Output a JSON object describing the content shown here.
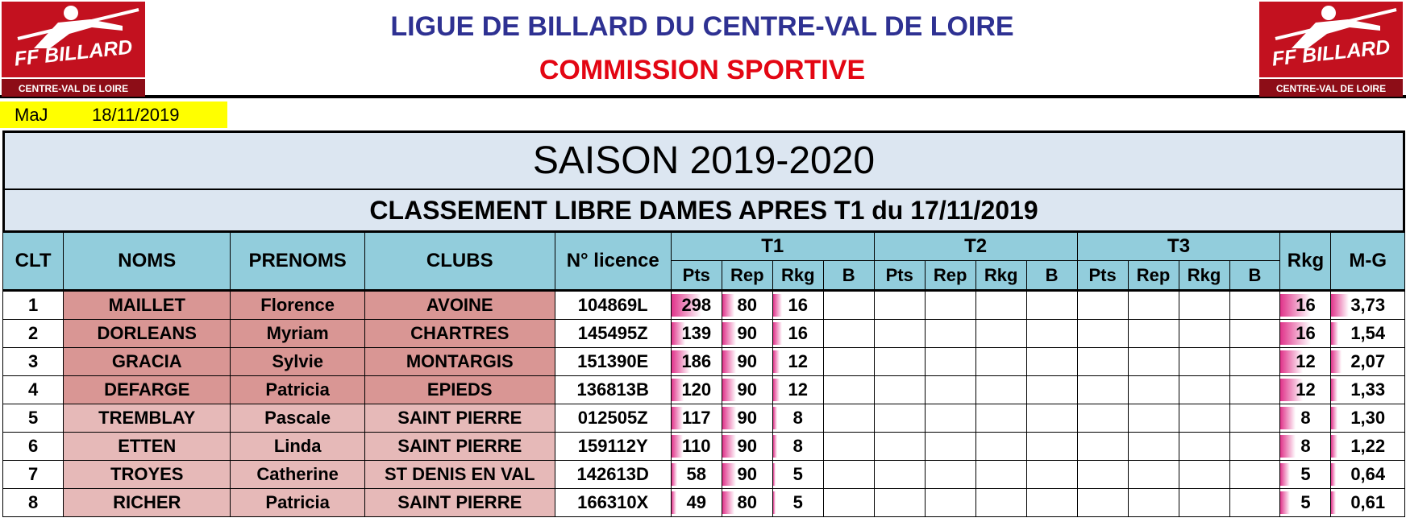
{
  "header": {
    "title": "LIGUE DE BILLARD DU CENTRE-VAL DE LOIRE",
    "subtitle": "COMMISSION SPORTIVE",
    "logo_text": "FF BILLARD",
    "logo_sub": "CENTRE-VAL DE LOIRE",
    "colors": {
      "title": "#2e3192",
      "subtitle": "#e30613",
      "logo": "#c3111f"
    }
  },
  "maj": {
    "label": "MaJ",
    "date": "18/11/2019"
  },
  "season": "SAISON 2019-2020",
  "classement": "CLASSEMENT LIBRE DAMES APRES T1 du 17/11/2019",
  "columns": {
    "clt": "CLT",
    "noms": "NOMS",
    "prenoms": "PRENOMS",
    "clubs": "CLUBS",
    "licence": "N° licence",
    "t1": "T1",
    "t2": "T2",
    "t3": "T3",
    "rkg": "Rkg",
    "mg": "M-G",
    "sub": {
      "pts": "Pts",
      "rep": "Rep",
      "rkg": "Rkg",
      "b": "B"
    }
  },
  "rows": [
    {
      "clt": "1",
      "nom": "MAILLET",
      "prenom": "Florence",
      "club": "AVOINE",
      "licence": "104869L",
      "pts": "298",
      "rep": "80",
      "rkg": "16",
      "total_rkg": "16",
      "mg": "3,73",
      "tier": 1
    },
    {
      "clt": "2",
      "nom": "DORLEANS",
      "prenom": "Myriam",
      "club": "CHARTRES",
      "licence": "145495Z",
      "pts": "139",
      "rep": "90",
      "rkg": "16",
      "total_rkg": "16",
      "mg": "1,54",
      "tier": 1
    },
    {
      "clt": "3",
      "nom": "GRACIA",
      "prenom": "Sylvie",
      "club": "MONTARGIS",
      "licence": "151390E",
      "pts": "186",
      "rep": "90",
      "rkg": "12",
      "total_rkg": "12",
      "mg": "2,07",
      "tier": 1
    },
    {
      "clt": "4",
      "nom": "DEFARGE",
      "prenom": "Patricia",
      "club": "EPIEDS",
      "licence": "136813B",
      "pts": "120",
      "rep": "90",
      "rkg": "12",
      "total_rkg": "12",
      "mg": "1,33",
      "tier": 1
    },
    {
      "clt": "5",
      "nom": "TREMBLAY",
      "prenom": "Pascale",
      "club": "SAINT PIERRE",
      "licence": "012505Z",
      "pts": "117",
      "rep": "90",
      "rkg": "8",
      "total_rkg": "8",
      "mg": "1,30",
      "tier": 2
    },
    {
      "clt": "6",
      "nom": "ETTEN",
      "prenom": "Linda",
      "club": "SAINT PIERRE",
      "licence": "159112Y",
      "pts": "110",
      "rep": "90",
      "rkg": "8",
      "total_rkg": "8",
      "mg": "1,22",
      "tier": 2
    },
    {
      "clt": "7",
      "nom": "TROYES",
      "prenom": "Catherine",
      "club": "ST DENIS EN VAL",
      "licence": "142613D",
      "pts": "58",
      "rep": "90",
      "rkg": "5",
      "total_rkg": "5",
      "mg": "0,64",
      "tier": 2
    },
    {
      "clt": "8",
      "nom": "RICHER",
      "prenom": "Patricia",
      "club": "SAINT PIERRE",
      "licence": "166310X",
      "pts": "49",
      "rep": "80",
      "rkg": "5",
      "total_rkg": "5",
      "mg": "0,61",
      "tier": 2
    }
  ]
}
